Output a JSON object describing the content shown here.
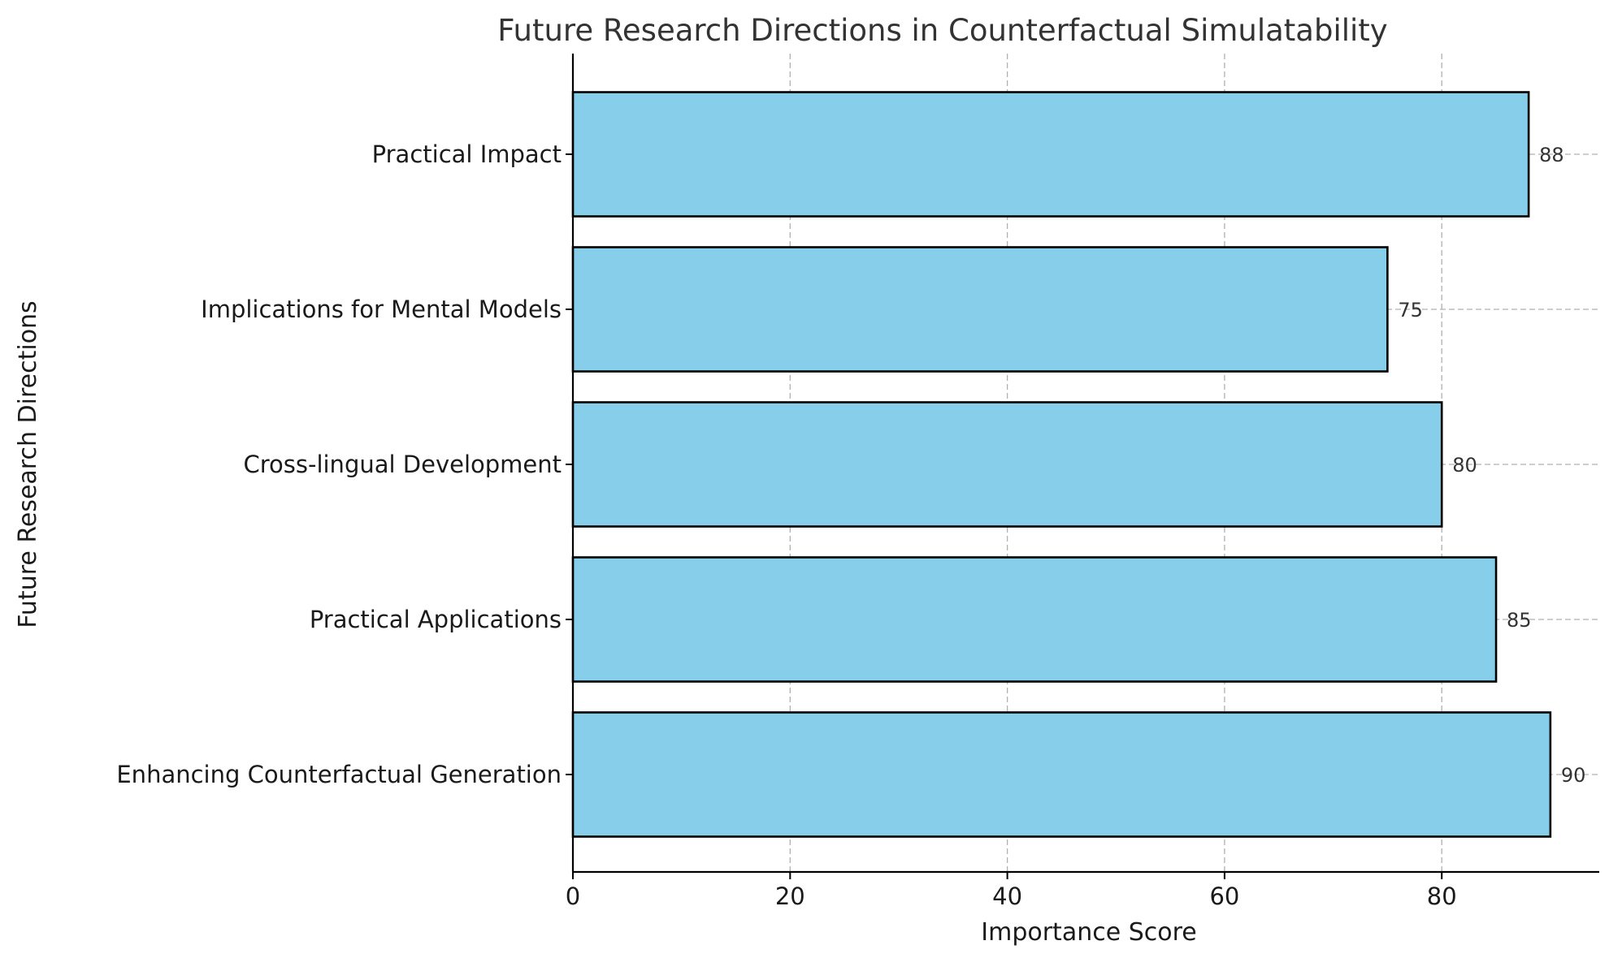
{
  "chart_data": {
    "type": "bar",
    "orientation": "horizontal",
    "title": "Future Research Directions in Counterfactual Simulatability",
    "xlabel": "Importance Score",
    "ylabel": "Future Research Directions",
    "categories": [
      "Enhancing Counterfactual Generation",
      "Practical Applications",
      "Cross-lingual Development",
      "Implications for Mental Models",
      "Practical Impact"
    ],
    "values": [
      90,
      85,
      80,
      75,
      88
    ],
    "data_labels": [
      "90",
      "85",
      "80",
      "75",
      "88"
    ],
    "xlim": [
      0,
      94.5
    ],
    "xticks": [
      0,
      20,
      40,
      60,
      80
    ],
    "xtick_labels": [
      "0",
      "20",
      "40",
      "60",
      "80"
    ],
    "grid": true,
    "bar_color": "#87ceeb",
    "edge_color": "#000000"
  }
}
